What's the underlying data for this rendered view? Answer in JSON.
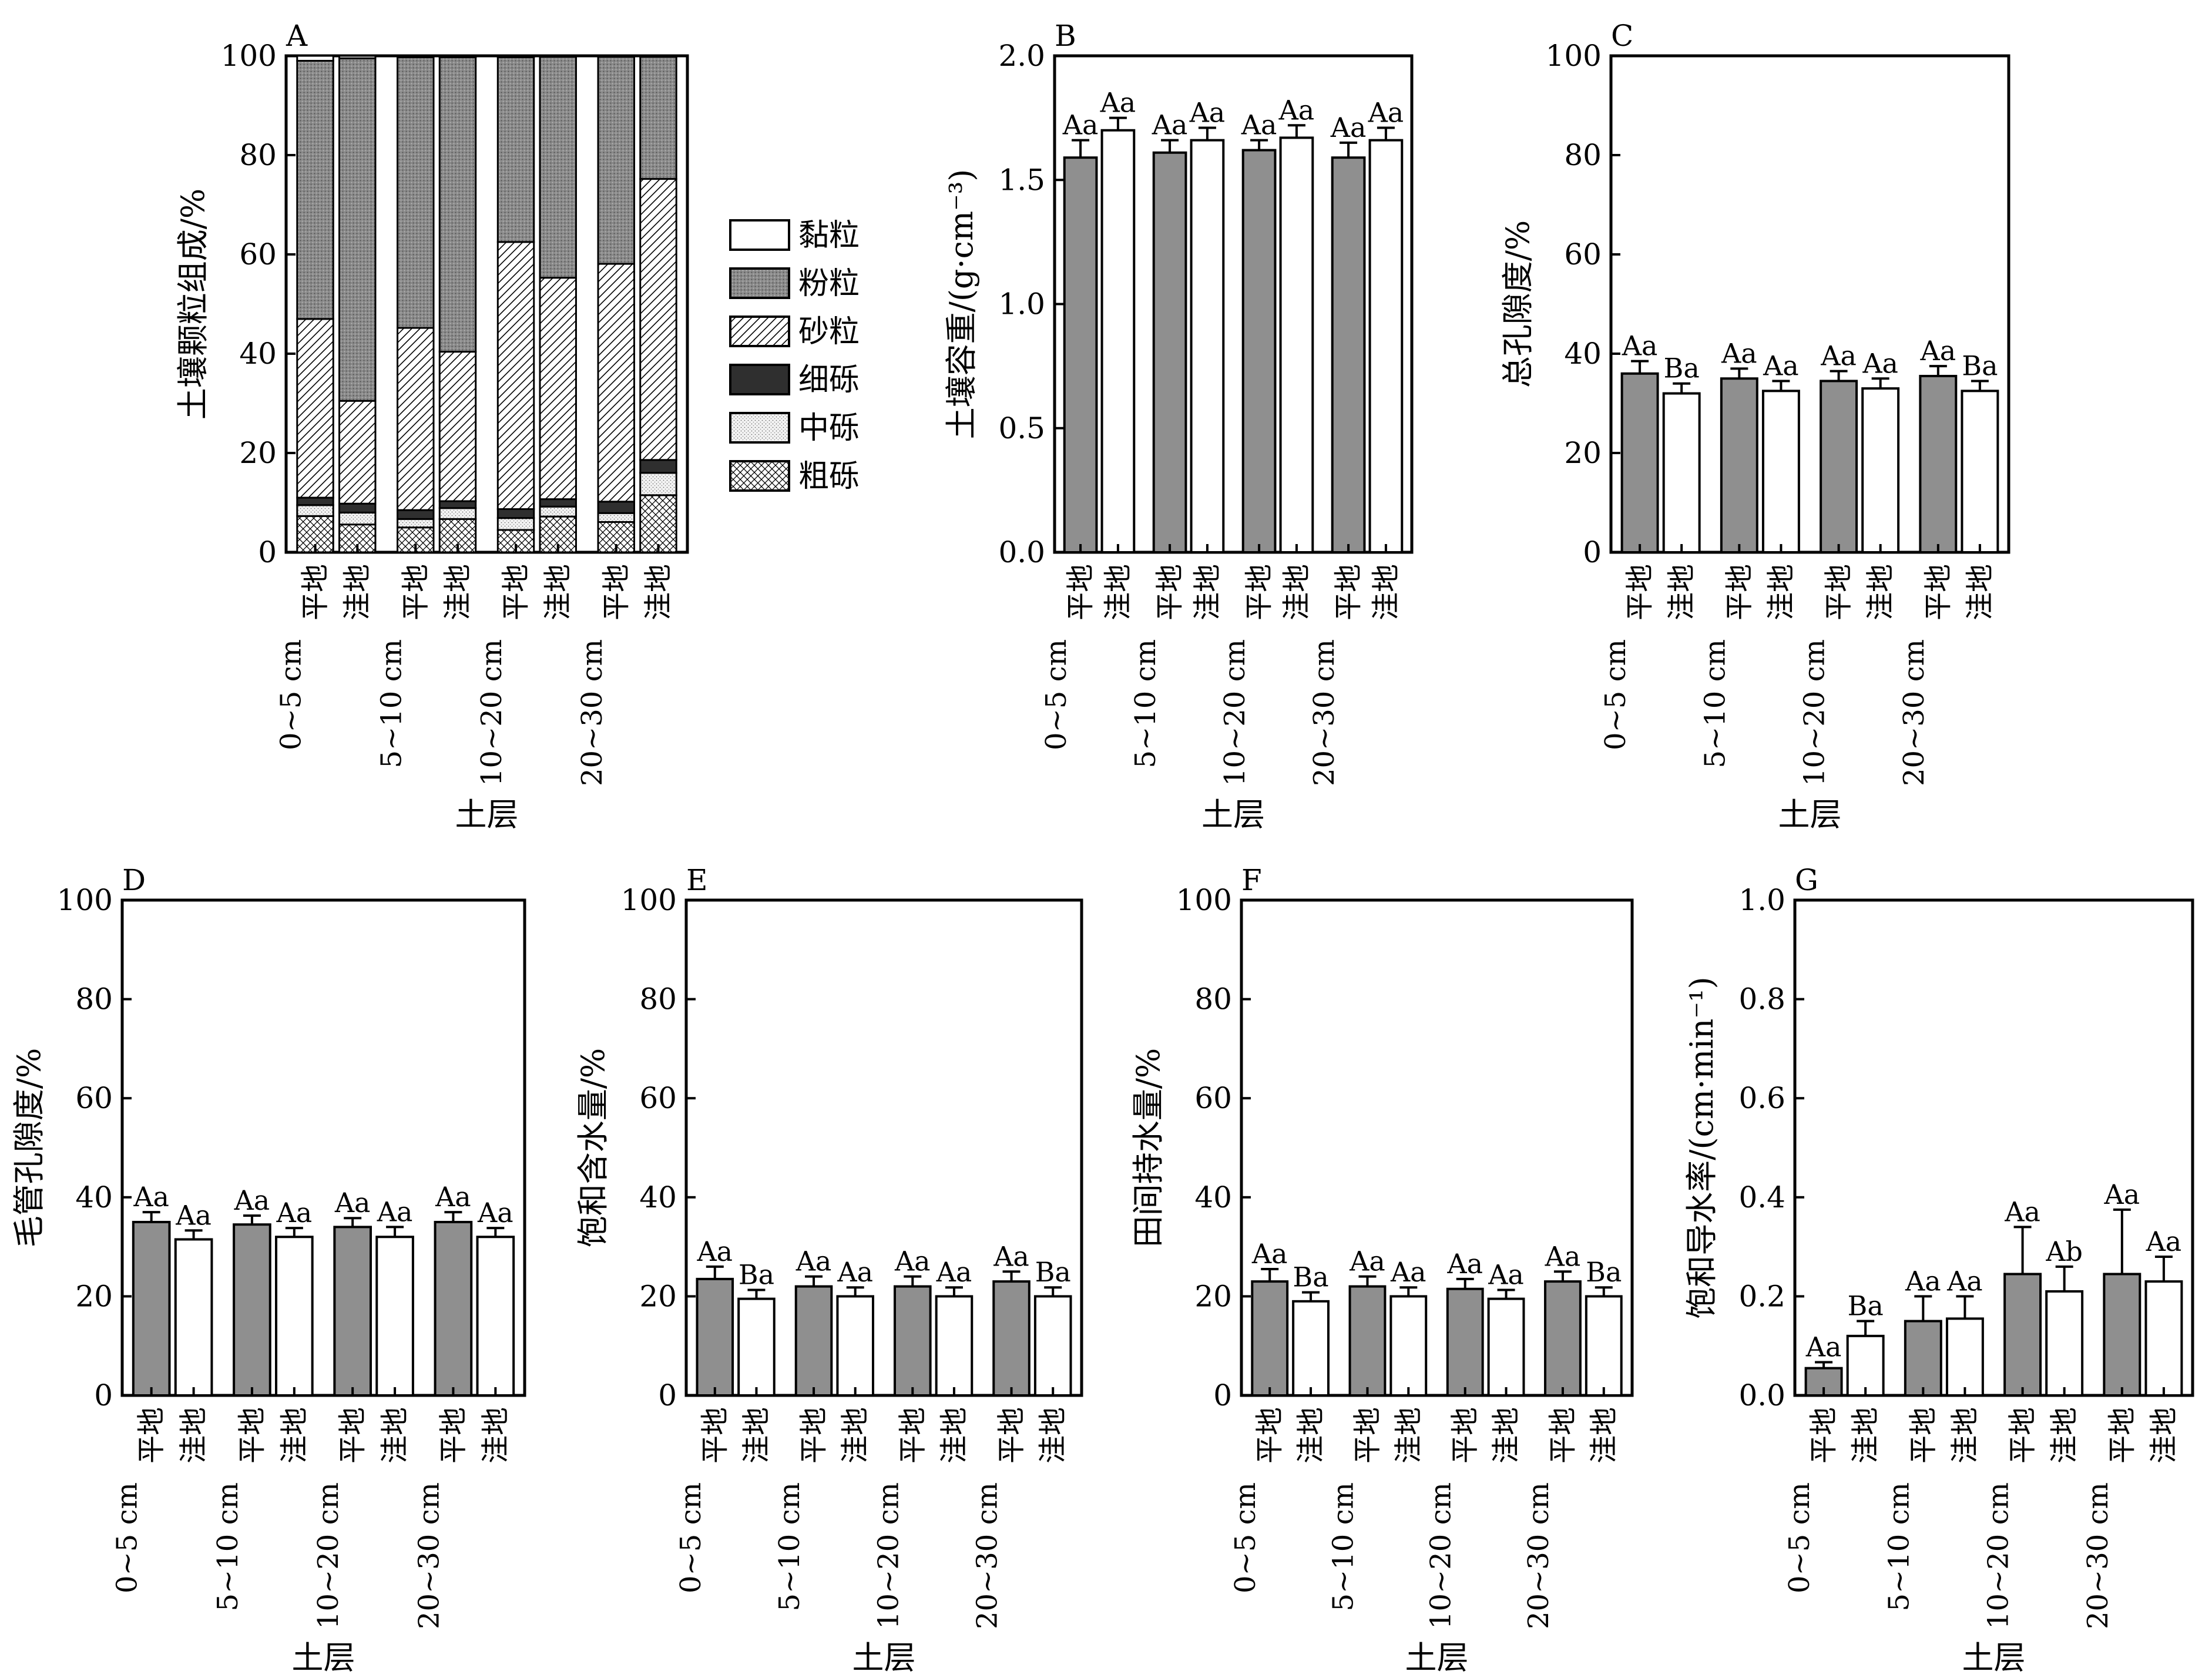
{
  "colors": {
    "filled": "#8f8f8f",
    "open": "#ffffff",
    "axis": "#000000"
  },
  "chart_data": [
    {
      "id": "A",
      "type": "stacked-bar",
      "letter": "A",
      "ylabel": "土壤颗粒组成/%",
      "xlabel": "土层",
      "ylim": [
        0,
        100
      ],
      "yticks": [
        "0",
        "20",
        "40",
        "60",
        "80",
        "100"
      ],
      "depths": [
        "0~5 cm",
        "5~10 cm",
        "10~20 cm",
        "20~30 cm"
      ],
      "sites": [
        "平地",
        "洼地"
      ],
      "components": [
        "粗砾",
        "中砾",
        "细砾",
        "砂粒",
        "粉粒",
        "黏粒"
      ],
      "legend": [
        "黏粒",
        "粉粒",
        "砂粒",
        "细砾",
        "中砾",
        "粗砾"
      ],
      "stacks": [
        [
          7.3,
          2.2,
          1.5,
          36.0,
          52.0,
          1.0
        ],
        [
          5.6,
          2.4,
          1.8,
          20.7,
          69.0,
          0.5
        ],
        [
          5.0,
          1.7,
          1.8,
          36.7,
          54.5,
          0.3
        ],
        [
          6.7,
          2.2,
          1.4,
          30.1,
          59.3,
          0.3
        ],
        [
          4.5,
          2.4,
          1.8,
          53.8,
          37.2,
          0.3
        ],
        [
          7.2,
          2.0,
          1.5,
          44.6,
          44.5,
          0.2
        ],
        [
          6.1,
          1.8,
          2.3,
          47.9,
          41.7,
          0.2
        ],
        [
          11.5,
          4.5,
          2.6,
          56.6,
          24.6,
          0.2
        ]
      ]
    },
    {
      "id": "B",
      "type": "bar",
      "letter": "B",
      "ylabel": "土壤容重/(g·cm⁻³)",
      "xlabel": "土层",
      "ylim": [
        0,
        2.0
      ],
      "yticks": [
        "0.0",
        "0.5",
        "1.0",
        "1.5",
        "2.0"
      ],
      "depths": [
        "0~5 cm",
        "5~10 cm",
        "10~20 cm",
        "20~30 cm"
      ],
      "sites": [
        "平地",
        "洼地"
      ],
      "values": [
        1.59,
        1.7,
        1.61,
        1.66,
        1.62,
        1.67,
        1.59,
        1.66
      ],
      "errors": [
        0.07,
        0.05,
        0.05,
        0.05,
        0.04,
        0.05,
        0.06,
        0.05
      ],
      "labels": [
        "Aa",
        "Aa",
        "Aa",
        "Aa",
        "Aa",
        "Aa",
        "Aa",
        "Aa"
      ]
    },
    {
      "id": "C",
      "type": "bar",
      "letter": "C",
      "ylabel": "总孔隙度/%",
      "xlabel": "土层",
      "ylim": [
        0,
        100
      ],
      "yticks": [
        "0",
        "20",
        "40",
        "60",
        "80",
        "100"
      ],
      "depths": [
        "0~5 cm",
        "5~10 cm",
        "10~20 cm",
        "20~30 cm"
      ],
      "sites": [
        "平地",
        "洼地"
      ],
      "values": [
        36.0,
        32.0,
        35.0,
        32.5,
        34.5,
        33.0,
        35.5,
        32.5
      ],
      "errors": [
        2.5,
        2.0,
        2.0,
        2.0,
        2.0,
        2.0,
        2.0,
        2.0
      ],
      "labels": [
        "Aa",
        "Ba",
        "Aa",
        "Aa",
        "Aa",
        "Aa",
        "Aa",
        "Ba"
      ]
    },
    {
      "id": "D",
      "type": "bar",
      "letter": "D",
      "ylabel": "毛管孔隙度/%",
      "xlabel": "土层",
      "ylim": [
        0,
        100
      ],
      "yticks": [
        "0",
        "20",
        "40",
        "60",
        "80",
        "100"
      ],
      "depths": [
        "0~5 cm",
        "5~10 cm",
        "10~20 cm",
        "20~30 cm"
      ],
      "sites": [
        "平地",
        "洼地"
      ],
      "values": [
        35.0,
        31.5,
        34.5,
        32.0,
        34.0,
        32.0,
        35.0,
        32.0
      ],
      "errors": [
        2.0,
        1.8,
        1.8,
        1.8,
        1.8,
        2.0,
        2.0,
        1.8
      ],
      "labels": [
        "Aa",
        "Aa",
        "Aa",
        "Aa",
        "Aa",
        "Aa",
        "Aa",
        "Aa"
      ]
    },
    {
      "id": "E",
      "type": "bar",
      "letter": "E",
      "ylabel": "饱和含水量/%",
      "xlabel": "土层",
      "ylim": [
        0,
        100
      ],
      "yticks": [
        "0",
        "20",
        "40",
        "60",
        "80",
        "100"
      ],
      "depths": [
        "0~5 cm",
        "5~10 cm",
        "10~20 cm",
        "20~30 cm"
      ],
      "sites": [
        "平地",
        "洼地"
      ],
      "values": [
        23.5,
        19.5,
        22.0,
        20.0,
        22.0,
        20.0,
        23.0,
        20.0
      ],
      "errors": [
        2.5,
        1.8,
        2.0,
        1.8,
        2.0,
        1.8,
        2.0,
        1.8
      ],
      "labels": [
        "Aa",
        "Ba",
        "Aa",
        "Aa",
        "Aa",
        "Aa",
        "Aa",
        "Ba"
      ]
    },
    {
      "id": "F",
      "type": "bar",
      "letter": "F",
      "ylabel": "田间持水量/%",
      "xlabel": "土层",
      "ylim": [
        0,
        100
      ],
      "yticks": [
        "0",
        "20",
        "40",
        "60",
        "80",
        "100"
      ],
      "depths": [
        "0~5 cm",
        "5~10 cm",
        "10~20 cm",
        "20~30 cm"
      ],
      "sites": [
        "平地",
        "洼地"
      ],
      "values": [
        23.0,
        19.0,
        22.0,
        20.0,
        21.5,
        19.5,
        23.0,
        20.0
      ],
      "errors": [
        2.5,
        1.8,
        2.0,
        1.8,
        2.0,
        1.8,
        2.0,
        1.8
      ],
      "labels": [
        "Aa",
        "Ba",
        "Aa",
        "Aa",
        "Aa",
        "Aa",
        "Aa",
        "Ba"
      ]
    },
    {
      "id": "G",
      "type": "bar",
      "letter": "G",
      "ylabel": "饱和导水率/(cm·min⁻¹)",
      "xlabel": "土层",
      "ylim": [
        0,
        1.0
      ],
      "yticks": [
        "0.0",
        "0.2",
        "0.4",
        "0.6",
        "0.8",
        "1.0"
      ],
      "depths": [
        "0~5 cm",
        "5~10 cm",
        "10~20 cm",
        "20~30 cm"
      ],
      "sites": [
        "平地",
        "洼地"
      ],
      "values": [
        0.055,
        0.12,
        0.15,
        0.155,
        0.245,
        0.21,
        0.245,
        0.23
      ],
      "errors": [
        0.012,
        0.03,
        0.05,
        0.045,
        0.095,
        0.05,
        0.13,
        0.05
      ],
      "labels": [
        "Aa",
        "Ba",
        "Aa",
        "Aa",
        "Aa",
        "Ab",
        "Aa",
        "Aa"
      ]
    }
  ]
}
